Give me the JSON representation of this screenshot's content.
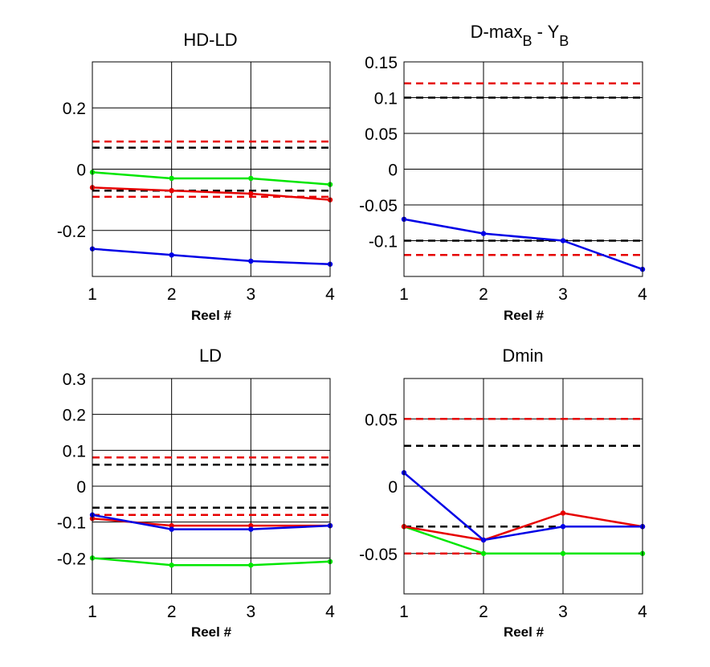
{
  "chart_data": [
    {
      "type": "line",
      "title": "HD-LD",
      "xlabel": "Reel #",
      "x": [
        1,
        2,
        3,
        4
      ],
      "xticks": [
        1,
        2,
        3,
        4
      ],
      "xlim": [
        1,
        4
      ],
      "ylim": [
        -0.35,
        0.35
      ],
      "yticks": [
        -0.2,
        0,
        0.2
      ],
      "ytick_labels": [
        "-0.2",
        "0",
        "0.2"
      ],
      "grid": true,
      "series": [
        {
          "color": "#00e600",
          "values": [
            -0.01,
            -0.03,
            -0.03,
            -0.05
          ]
        },
        {
          "color": "#e60000",
          "values": [
            -0.06,
            -0.07,
            -0.08,
            -0.1
          ]
        },
        {
          "color": "#0000e6",
          "values": [
            -0.26,
            -0.28,
            -0.3,
            -0.31
          ]
        }
      ],
      "hlines": [
        {
          "color": "#e60000",
          "style": "dashed",
          "y": 0.09
        },
        {
          "color": "#000000",
          "style": "dashed",
          "y": 0.07
        },
        {
          "color": "#000000",
          "style": "dashed",
          "y": -0.07
        },
        {
          "color": "#e60000",
          "style": "dashed",
          "y": -0.09
        }
      ]
    },
    {
      "type": "line",
      "title": "D-max",
      "title_sub1": "B",
      "title_mid": " - Y",
      "title_sub2": "B",
      "xlabel": "Reel #",
      "x": [
        1,
        2,
        3,
        4
      ],
      "xticks": [
        1,
        2,
        3,
        4
      ],
      "xlim": [
        1,
        4
      ],
      "ylim": [
        -0.15,
        0.15
      ],
      "yticks": [
        -0.1,
        -0.05,
        0,
        0.05,
        0.1,
        0.15
      ],
      "ytick_labels": [
        "-0.1",
        "-0.05",
        "0",
        "0.05",
        "0.1",
        "0.15"
      ],
      "grid": true,
      "series": [
        {
          "color": "#0000e6",
          "values": [
            -0.07,
            -0.09,
            -0.1,
            -0.14
          ]
        }
      ],
      "hlines": [
        {
          "color": "#e60000",
          "style": "dashed",
          "y": 0.12
        },
        {
          "color": "#000000",
          "style": "dashed",
          "y": 0.1
        },
        {
          "color": "#000000",
          "style": "dashed",
          "y": -0.1
        },
        {
          "color": "#e60000",
          "style": "dashed",
          "y": -0.12
        }
      ]
    },
    {
      "type": "line",
      "title": "LD",
      "xlabel": "Reel #",
      "x": [
        1,
        2,
        3,
        4
      ],
      "xticks": [
        1,
        2,
        3,
        4
      ],
      "xlim": [
        1,
        4
      ],
      "ylim": [
        -0.3,
        0.3
      ],
      "yticks": [
        -0.2,
        -0.1,
        0,
        0.1,
        0.2,
        0.3
      ],
      "ytick_labels": [
        "-0.2",
        "-0.1",
        "0",
        "0.1",
        "0.2",
        "0.3"
      ],
      "grid": true,
      "series": [
        {
          "color": "#00e600",
          "values": [
            -0.2,
            -0.22,
            -0.22,
            -0.21
          ]
        },
        {
          "color": "#e60000",
          "values": [
            -0.09,
            -0.11,
            -0.11,
            -0.11
          ]
        },
        {
          "color": "#0000e6",
          "values": [
            -0.08,
            -0.12,
            -0.12,
            -0.11
          ]
        }
      ],
      "hlines": [
        {
          "color": "#e60000",
          "style": "dashed",
          "y": 0.08
        },
        {
          "color": "#000000",
          "style": "dashed",
          "y": 0.06
        },
        {
          "color": "#000000",
          "style": "dashed",
          "y": -0.06
        },
        {
          "color": "#e60000",
          "style": "dashed",
          "y": -0.08
        }
      ]
    },
    {
      "type": "line",
      "title": "Dmin",
      "xlabel": "Reel #",
      "x": [
        1,
        2,
        3,
        4
      ],
      "xticks": [
        1,
        2,
        3,
        4
      ],
      "xlim": [
        1,
        4
      ],
      "ylim": [
        -0.08,
        0.08
      ],
      "yticks": [
        -0.05,
        0,
        0.05
      ],
      "ytick_labels": [
        "-0.05",
        "0",
        "0.05"
      ],
      "grid": true,
      "series": [
        {
          "color": "#00e600",
          "values": [
            -0.03,
            -0.05,
            -0.05,
            -0.05
          ]
        },
        {
          "color": "#e60000",
          "values": [
            -0.03,
            -0.04,
            -0.02,
            -0.03
          ]
        },
        {
          "color": "#0000e6",
          "values": [
            0.01,
            -0.04,
            -0.03,
            -0.03
          ]
        }
      ],
      "hlines": [
        {
          "color": "#e60000",
          "style": "dashed",
          "y": 0.05
        },
        {
          "color": "#000000",
          "style": "dashed",
          "y": 0.03
        },
        {
          "color": "#000000",
          "style": "dashed",
          "y": -0.03
        },
        {
          "color": "#e60000",
          "style": "dashed",
          "y": -0.05
        }
      ]
    }
  ]
}
